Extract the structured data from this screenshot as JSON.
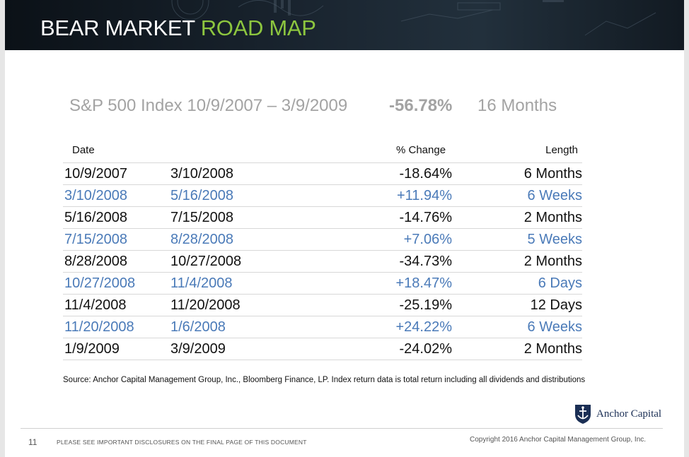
{
  "header": {
    "title_main": "BEAR MARKET",
    "title_accent": "ROAD MAP"
  },
  "summary": {
    "index_label": "S&P 500 Index 10/9/2007 – 3/9/2009",
    "total_change": "-56.78%",
    "length": "16 Months"
  },
  "table": {
    "headers": {
      "date": "Date",
      "change": "% Change",
      "length": "Length"
    },
    "rows": [
      {
        "start": "10/9/2007",
        "end": "3/10/2008",
        "change": "-18.64%",
        "length": "6 Months"
      },
      {
        "start": "3/10/2008",
        "end": "5/16/2008",
        "change": "+11.94%",
        "length": "6 Weeks"
      },
      {
        "start": "5/16/2008",
        "end": "7/15/2008",
        "change": "-14.76%",
        "length": "2 Months"
      },
      {
        "start": "7/15/2008",
        "end": "8/28/2008",
        "change": "+7.06%",
        "length": "5 Weeks"
      },
      {
        "start": "8/28/2008",
        "end": "10/27/2008",
        "change": "-34.73%",
        "length": "2 Months"
      },
      {
        "start": "10/27/2008",
        "end": "11/4/2008",
        "change": "+18.47%",
        "length": "6 Days"
      },
      {
        "start": "11/4/2008",
        "end": "11/20/2008",
        "change": "-25.19%",
        "length": "12 Days"
      },
      {
        "start": "11/20/2008",
        "end": "1/6/2008",
        "change": "+24.22%",
        "length": "6 Weeks"
      },
      {
        "start": "1/9/2009",
        "end": "3/9/2009",
        "change": "-24.02%",
        "length": "2 Months"
      }
    ]
  },
  "source": "Source: Anchor Capital Management Group, Inc., Bloomberg Finance, LP. Index return data is total return including all dividends and distributions",
  "logo": {
    "text": "Anchor Capital",
    "icon": "anchor-shield-icon"
  },
  "footer": {
    "page_number": "11",
    "disclosure": "PLEASE SEE IMPORTANT DISCLOSURES ON THE FINAL PAGE OF THIS DOCUMENT",
    "copyright": "Copyright 2016 Anchor Capital Management Group, Inc."
  },
  "colors": {
    "accent_green": "#8dc63f",
    "rally_blue": "#4a7ab8",
    "summary_gray": "#a3a3a3",
    "brand_navy": "#1b2f55"
  }
}
